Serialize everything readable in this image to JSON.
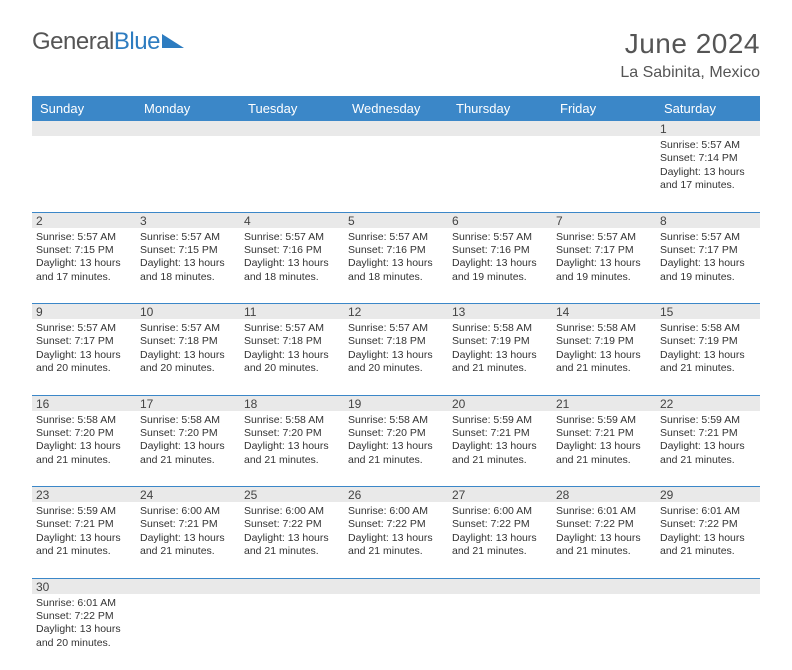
{
  "logo": {
    "general": "General",
    "blue": "Blue"
  },
  "title": "June 2024",
  "location": "La Sabinita, Mexico",
  "colors": {
    "header_bg": "#3b87c8",
    "header_text": "#ffffff",
    "daynum_bg": "#e9e9e9",
    "rule": "#3b87c8",
    "title_color": "#555555",
    "logo_blue": "#2d7cc0"
  },
  "day_headers": [
    "Sunday",
    "Monday",
    "Tuesday",
    "Wednesday",
    "Thursday",
    "Friday",
    "Saturday"
  ],
  "weeks": [
    [
      null,
      null,
      null,
      null,
      null,
      null,
      {
        "n": "1",
        "sr": "Sunrise: 5:57 AM",
        "ss": "Sunset: 7:14 PM",
        "dl": "Daylight: 13 hours and 17 minutes."
      }
    ],
    [
      {
        "n": "2",
        "sr": "Sunrise: 5:57 AM",
        "ss": "Sunset: 7:15 PM",
        "dl": "Daylight: 13 hours and 17 minutes."
      },
      {
        "n": "3",
        "sr": "Sunrise: 5:57 AM",
        "ss": "Sunset: 7:15 PM",
        "dl": "Daylight: 13 hours and 18 minutes."
      },
      {
        "n": "4",
        "sr": "Sunrise: 5:57 AM",
        "ss": "Sunset: 7:16 PM",
        "dl": "Daylight: 13 hours and 18 minutes."
      },
      {
        "n": "5",
        "sr": "Sunrise: 5:57 AM",
        "ss": "Sunset: 7:16 PM",
        "dl": "Daylight: 13 hours and 18 minutes."
      },
      {
        "n": "6",
        "sr": "Sunrise: 5:57 AM",
        "ss": "Sunset: 7:16 PM",
        "dl": "Daylight: 13 hours and 19 minutes."
      },
      {
        "n": "7",
        "sr": "Sunrise: 5:57 AM",
        "ss": "Sunset: 7:17 PM",
        "dl": "Daylight: 13 hours and 19 minutes."
      },
      {
        "n": "8",
        "sr": "Sunrise: 5:57 AM",
        "ss": "Sunset: 7:17 PM",
        "dl": "Daylight: 13 hours and 19 minutes."
      }
    ],
    [
      {
        "n": "9",
        "sr": "Sunrise: 5:57 AM",
        "ss": "Sunset: 7:17 PM",
        "dl": "Daylight: 13 hours and 20 minutes."
      },
      {
        "n": "10",
        "sr": "Sunrise: 5:57 AM",
        "ss": "Sunset: 7:18 PM",
        "dl": "Daylight: 13 hours and 20 minutes."
      },
      {
        "n": "11",
        "sr": "Sunrise: 5:57 AM",
        "ss": "Sunset: 7:18 PM",
        "dl": "Daylight: 13 hours and 20 minutes."
      },
      {
        "n": "12",
        "sr": "Sunrise: 5:57 AM",
        "ss": "Sunset: 7:18 PM",
        "dl": "Daylight: 13 hours and 20 minutes."
      },
      {
        "n": "13",
        "sr": "Sunrise: 5:58 AM",
        "ss": "Sunset: 7:19 PM",
        "dl": "Daylight: 13 hours and 21 minutes."
      },
      {
        "n": "14",
        "sr": "Sunrise: 5:58 AM",
        "ss": "Sunset: 7:19 PM",
        "dl": "Daylight: 13 hours and 21 minutes."
      },
      {
        "n": "15",
        "sr": "Sunrise: 5:58 AM",
        "ss": "Sunset: 7:19 PM",
        "dl": "Daylight: 13 hours and 21 minutes."
      }
    ],
    [
      {
        "n": "16",
        "sr": "Sunrise: 5:58 AM",
        "ss": "Sunset: 7:20 PM",
        "dl": "Daylight: 13 hours and 21 minutes."
      },
      {
        "n": "17",
        "sr": "Sunrise: 5:58 AM",
        "ss": "Sunset: 7:20 PM",
        "dl": "Daylight: 13 hours and 21 minutes."
      },
      {
        "n": "18",
        "sr": "Sunrise: 5:58 AM",
        "ss": "Sunset: 7:20 PM",
        "dl": "Daylight: 13 hours and 21 minutes."
      },
      {
        "n": "19",
        "sr": "Sunrise: 5:58 AM",
        "ss": "Sunset: 7:20 PM",
        "dl": "Daylight: 13 hours and 21 minutes."
      },
      {
        "n": "20",
        "sr": "Sunrise: 5:59 AM",
        "ss": "Sunset: 7:21 PM",
        "dl": "Daylight: 13 hours and 21 minutes."
      },
      {
        "n": "21",
        "sr": "Sunrise: 5:59 AM",
        "ss": "Sunset: 7:21 PM",
        "dl": "Daylight: 13 hours and 21 minutes."
      },
      {
        "n": "22",
        "sr": "Sunrise: 5:59 AM",
        "ss": "Sunset: 7:21 PM",
        "dl": "Daylight: 13 hours and 21 minutes."
      }
    ],
    [
      {
        "n": "23",
        "sr": "Sunrise: 5:59 AM",
        "ss": "Sunset: 7:21 PM",
        "dl": "Daylight: 13 hours and 21 minutes."
      },
      {
        "n": "24",
        "sr": "Sunrise: 6:00 AM",
        "ss": "Sunset: 7:21 PM",
        "dl": "Daylight: 13 hours and 21 minutes."
      },
      {
        "n": "25",
        "sr": "Sunrise: 6:00 AM",
        "ss": "Sunset: 7:22 PM",
        "dl": "Daylight: 13 hours and 21 minutes."
      },
      {
        "n": "26",
        "sr": "Sunrise: 6:00 AM",
        "ss": "Sunset: 7:22 PM",
        "dl": "Daylight: 13 hours and 21 minutes."
      },
      {
        "n": "27",
        "sr": "Sunrise: 6:00 AM",
        "ss": "Sunset: 7:22 PM",
        "dl": "Daylight: 13 hours and 21 minutes."
      },
      {
        "n": "28",
        "sr": "Sunrise: 6:01 AM",
        "ss": "Sunset: 7:22 PM",
        "dl": "Daylight: 13 hours and 21 minutes."
      },
      {
        "n": "29",
        "sr": "Sunrise: 6:01 AM",
        "ss": "Sunset: 7:22 PM",
        "dl": "Daylight: 13 hours and 21 minutes."
      }
    ],
    [
      {
        "n": "30",
        "sr": "Sunrise: 6:01 AM",
        "ss": "Sunset: 7:22 PM",
        "dl": "Daylight: 13 hours and 20 minutes."
      },
      null,
      null,
      null,
      null,
      null,
      null
    ]
  ]
}
